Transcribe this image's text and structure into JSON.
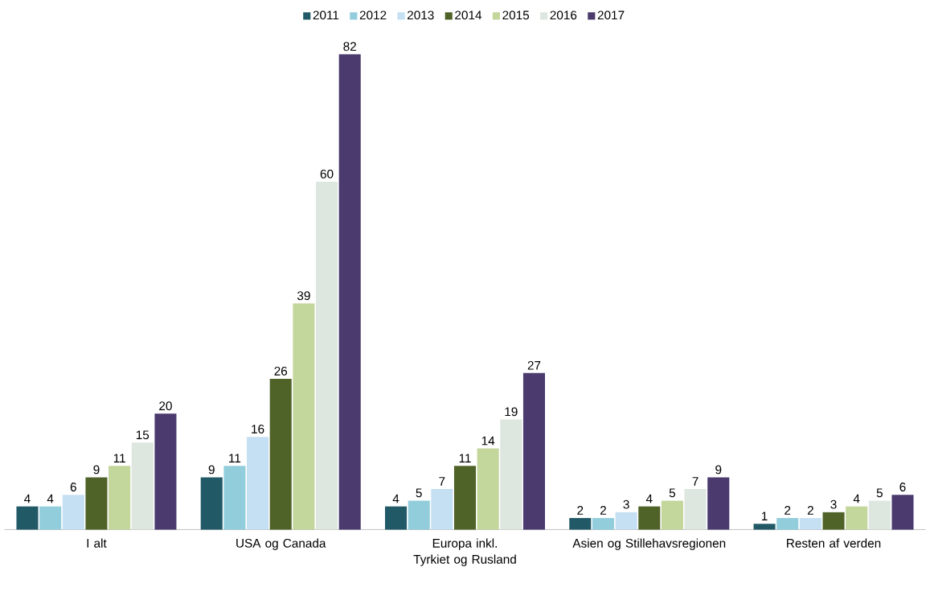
{
  "chart_data": {
    "type": "bar",
    "categories": [
      "I alt",
      "USA og Canada",
      "Europa inkl. Tyrkiet og Rusland",
      "Asien og Stillehavsregionen",
      "Resten af verden"
    ],
    "series": [
      {
        "name": "2011",
        "color": "#215967",
        "values": [
          4,
          9,
          4,
          2,
          1
        ]
      },
      {
        "name": "2012",
        "color": "#92cddc",
        "values": [
          4,
          11,
          5,
          2,
          2
        ]
      },
      {
        "name": "2013",
        "color": "#c5dff3",
        "values": [
          6,
          16,
          7,
          3,
          2
        ]
      },
      {
        "name": "2014",
        "color": "#4f6228",
        "values": [
          9,
          26,
          11,
          4,
          3
        ]
      },
      {
        "name": "2015",
        "color": "#c3d69b",
        "values": [
          11,
          39,
          14,
          5,
          4
        ]
      },
      {
        "name": "2016",
        "color": "#dde6df",
        "values": [
          15,
          60,
          19,
          7,
          5
        ]
      },
      {
        "name": "2017",
        "color": "#4a3a6e",
        "values": [
          20,
          82,
          27,
          9,
          6
        ]
      }
    ],
    "data_labels": true,
    "legend": "top"
  }
}
